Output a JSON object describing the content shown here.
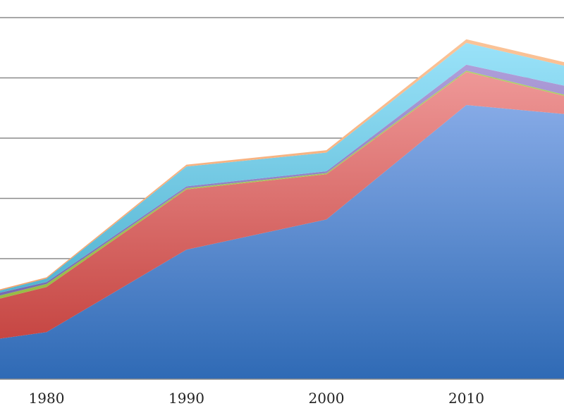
{
  "chart_data": {
    "type": "area",
    "stacked": true,
    "x": [
      1976,
      1980,
      1990,
      2000,
      2010,
      2017
    ],
    "x_ticks": [
      "1980",
      "1990",
      "2000",
      "2010"
    ],
    "ylim": [
      0,
      6
    ],
    "y_gridlines": [
      1,
      2,
      3,
      4,
      5,
      6
    ],
    "grid": true,
    "legend": "none",
    "series": [
      {
        "values": [
          0.65,
          0.78,
          2.15,
          2.65,
          4.55,
          4.4
        ],
        "color_top": "#9ebcf4",
        "color_bottom": "#2f6ab5"
      },
      {
        "values": [
          0.65,
          0.75,
          1.0,
          0.75,
          0.55,
          0.3
        ],
        "color_top": "#f5a5a5",
        "color_bottom": "#c03a36"
      },
      {
        "values": [
          0.05,
          0.05,
          0.02,
          0.02,
          0.02,
          0.02
        ],
        "color_top": "#b3d36e",
        "color_bottom": "#8fb43a"
      },
      {
        "values": [
          0.05,
          0.03,
          0.03,
          0.03,
          0.1,
          0.15
        ],
        "color_top": "#b7a6df",
        "color_bottom": "#6556a3"
      },
      {
        "values": [
          0.03,
          0.06,
          0.33,
          0.31,
          0.36,
          0.33
        ],
        "color_top": "#9ee5fb",
        "color_bottom": "#3aa3c3"
      },
      {
        "values": [
          0.02,
          0.02,
          0.03,
          0.04,
          0.06,
          0.06
        ],
        "color_top": "#fbc59a",
        "color_bottom": "#f0955a"
      }
    ]
  }
}
